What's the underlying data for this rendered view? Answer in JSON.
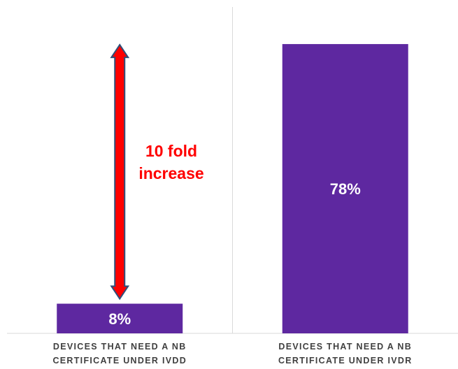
{
  "chart_data": {
    "type": "bar",
    "categories": [
      "DEVICES THAT NEED A NB CERTIFICATE UNDER IVDD",
      "DEVICES THAT NEED A NB CERTIFICATE UNDER IVDR"
    ],
    "category_lines": [
      [
        "DEVICES THAT NEED A NB",
        "CERTIFICATE UNDER IVDD"
      ],
      [
        "DEVICES THAT NEED A NB",
        "CERTIFICATE UNDER IVDR"
      ]
    ],
    "values": [
      8,
      78
    ],
    "data_labels": [
      "8%",
      "78%"
    ],
    "ylim": [
      0,
      88
    ],
    "grid": false,
    "bar_color": "#5e28a0",
    "annotation": {
      "lines": [
        "10 fold",
        "increase"
      ],
      "from_category": 0,
      "from_value": 8,
      "to_value": 78,
      "arrow_color": "#ff0000",
      "arrow_outline": "#2e4f7a",
      "text_color": "#ff0000"
    }
  }
}
